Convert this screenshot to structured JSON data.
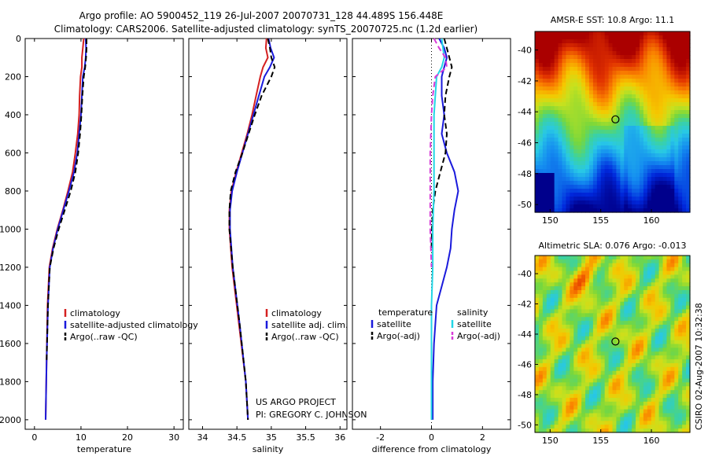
{
  "title": {
    "line1": "Argo profile: AO 5900452_119 26-Jul-2007 20070731_128 44.489S 156.448E",
    "line2": "Climatology: CARS2006. Satellite-adjusted climatology: synTS_20070725.nc (1.2d earlier)"
  },
  "colors": {
    "climatology": "#d42020",
    "satellite": "#1a1adc",
    "argo": "#000000",
    "cyan": "#22d6e6",
    "magenta": "#d83ad8"
  },
  "credit": {
    "line1": "US ARGO PROJECT",
    "line2": "PI: GREGORY C. JOHNSON"
  },
  "side_stamp": "CSIRO 02-Aug-2007 10:32:38",
  "chart_data": [
    {
      "type": "line",
      "xlabel": "temperature",
      "ylabel": "",
      "xlim": [
        -2,
        32
      ],
      "ylim": [
        0,
        2050
      ],
      "xticks": [
        0,
        10,
        20,
        30
      ],
      "yticks": [
        0,
        200,
        400,
        600,
        800,
        1000,
        1200,
        1400,
        1600,
        1800,
        2000
      ],
      "legend": [
        "climatology",
        "satellite-adjusted climatology",
        "Argo(..raw -QC)"
      ],
      "series": [
        {
          "name": "climatology",
          "color": "climatology",
          "dash": false,
          "x": [
            10.6,
            10.4,
            10.2,
            10.2,
            9.9,
            9.7,
            9.6,
            9.3,
            8.8,
            8.2,
            7.2,
            6.1,
            4.9,
            3.9,
            3.2,
            2.8,
            2.6,
            2.4
          ],
          "y": [
            0,
            50,
            100,
            150,
            200,
            300,
            400,
            500,
            600,
            700,
            800,
            900,
            1000,
            1100,
            1200,
            1400,
            1700,
            2000
          ]
        },
        {
          "name": "satellite",
          "color": "satellite",
          "dash": false,
          "x": [
            11.0,
            11.1,
            11.0,
            10.8,
            10.4,
            10.2,
            10.0,
            9.6,
            9.2,
            8.5,
            7.4,
            6.2,
            5.0,
            4.0,
            3.3,
            2.9,
            2.6,
            2.4
          ],
          "y": [
            0,
            50,
            100,
            150,
            200,
            300,
            400,
            500,
            600,
            700,
            800,
            900,
            1000,
            1100,
            1200,
            1400,
            1700,
            2000
          ]
        },
        {
          "name": "argo",
          "color": "argo",
          "dash": true,
          "x": [
            11.2,
            11.2,
            11.1,
            10.9,
            10.6,
            10.3,
            10.1,
            9.8,
            9.4,
            8.8,
            7.8,
            6.5,
            5.2,
            4.1,
            3.3,
            2.9,
            2.6
          ],
          "y": [
            0,
            50,
            100,
            150,
            200,
            300,
            400,
            500,
            600,
            700,
            800,
            900,
            1000,
            1100,
            1200,
            1400,
            1700
          ]
        }
      ]
    },
    {
      "type": "line",
      "xlabel": "salinity",
      "ylabel": "",
      "xlim": [
        33.8,
        36.1
      ],
      "ylim": [
        0,
        2050
      ],
      "xticks": [
        34,
        34.5,
        35,
        35.5,
        36
      ],
      "xticklabels": [
        "34",
        "34.5",
        "35",
        "35.5",
        "36"
      ],
      "legend": [
        "climatology",
        "satellite adj. clim.",
        "Argo(..raw -QC)"
      ],
      "series": [
        {
          "name": "climatology",
          "color": "climatology",
          "dash": false,
          "x": [
            34.93,
            34.92,
            34.95,
            34.88,
            34.84,
            34.78,
            34.72,
            34.65,
            34.57,
            34.49,
            34.42,
            34.39,
            34.39,
            34.43,
            34.53,
            34.63,
            34.66
          ],
          "y": [
            0,
            50,
            100,
            150,
            200,
            300,
            400,
            500,
            600,
            700,
            800,
            900,
            1000,
            1200,
            1500,
            1800,
            2000
          ]
        },
        {
          "name": "satellite",
          "color": "satellite",
          "dash": false,
          "x": [
            34.96,
            34.99,
            35.04,
            34.98,
            34.9,
            34.82,
            34.74,
            34.66,
            34.58,
            34.5,
            34.43,
            34.4,
            34.4,
            34.44,
            34.54,
            34.63,
            34.66
          ],
          "y": [
            0,
            50,
            100,
            150,
            200,
            300,
            400,
            500,
            600,
            700,
            800,
            900,
            1000,
            1200,
            1500,
            1800,
            2000
          ]
        },
        {
          "name": "argo",
          "color": "argo",
          "dash": true,
          "x": [
            34.95,
            34.98,
            35.0,
            35.05,
            35.0,
            34.86,
            34.76,
            34.67,
            34.58,
            34.48,
            34.41,
            34.39,
            34.39,
            34.44,
            34.54,
            34.63,
            34.66
          ],
          "y": [
            0,
            50,
            100,
            150,
            200,
            300,
            400,
            500,
            600,
            700,
            800,
            900,
            1000,
            1200,
            1500,
            1800,
            2000
          ]
        }
      ]
    },
    {
      "type": "line",
      "xlabel": "difference from climatology",
      "ylabel": "",
      "xlim": [
        -3.1,
        3.1
      ],
      "ylim": [
        0,
        2050
      ],
      "xticks": [
        -2,
        0,
        2
      ],
      "legend_left_title": "temperature",
      "legend_right_title": "salinity",
      "legend_left": [
        "satellite",
        "Argo(-adj)"
      ],
      "legend_right": [
        "satellite",
        "Argo(-adj)"
      ],
      "series": [
        {
          "name": "temp satellite",
          "color": "satellite",
          "dash": false,
          "x": [
            0.3,
            0.5,
            0.6,
            0.5,
            0.4,
            0.4,
            0.5,
            0.4,
            0.6,
            0.9,
            1.05,
            0.9,
            0.8,
            0.75,
            0.6,
            0.4,
            0.2,
            0.1,
            0.05,
            0.05
          ],
          "y": [
            0,
            50,
            100,
            150,
            200,
            300,
            400,
            500,
            600,
            700,
            800,
            900,
            1000,
            1100,
            1200,
            1300,
            1400,
            1600,
            1800,
            2000
          ]
        },
        {
          "name": "temp argo",
          "color": "argo",
          "dash": true,
          "x": [
            0.5,
            0.6,
            0.7,
            0.8,
            0.7,
            0.55,
            0.5,
            0.6,
            0.55,
            0.35,
            0.15,
            0.05,
            0.02,
            0.0
          ],
          "y": [
            0,
            50,
            100,
            150,
            200,
            300,
            400,
            500,
            600,
            700,
            800,
            900,
            1000,
            1100
          ]
        },
        {
          "name": "sal satellite",
          "color": "cyan",
          "dash": false,
          "x": [
            0.4,
            0.45,
            0.5,
            0.4,
            0.2,
            0.1,
            0.1,
            0.1,
            0.05,
            0.05,
            0.0,
            0.0,
            0.0,
            0.0
          ],
          "y": [
            0,
            50,
            100,
            150,
            200,
            400,
            600,
            800,
            1000,
            1200,
            1400,
            1600,
            1800,
            2000
          ]
        },
        {
          "name": "sal argo",
          "color": "magenta",
          "dash": true,
          "x": [
            0.1,
            0.3,
            0.55,
            0.6,
            0.15,
            0.05,
            0.0,
            -0.05,
            -0.05,
            -0.05,
            0.0
          ],
          "y": [
            0,
            50,
            100,
            150,
            200,
            300,
            400,
            600,
            800,
            1000,
            1200
          ]
        }
      ]
    },
    {
      "type": "heatmap",
      "title": "AMSR-E SST: 10.8 Argo: 11.1",
      "xlim": [
        148.5,
        163.8
      ],
      "ylim": [
        -50.5,
        -38.8
      ],
      "xticks": [
        150,
        155,
        160
      ],
      "yticks": [
        -40,
        -42,
        -44,
        -46,
        -48,
        -50
      ],
      "marker": {
        "x": 156.448,
        "y": -44.489
      },
      "colorscale": "sst"
    },
    {
      "type": "heatmap",
      "title": "Altimetric SLA: 0.076 Argo: -0.013",
      "xlim": [
        148.5,
        163.8
      ],
      "ylim": [
        -50.5,
        -38.8
      ],
      "xticks": [
        150,
        155,
        160
      ],
      "yticks": [
        -40,
        -42,
        -44,
        -46,
        -48,
        -50
      ],
      "marker": {
        "x": 156.448,
        "y": -44.489
      },
      "colorscale": "sla"
    }
  ]
}
